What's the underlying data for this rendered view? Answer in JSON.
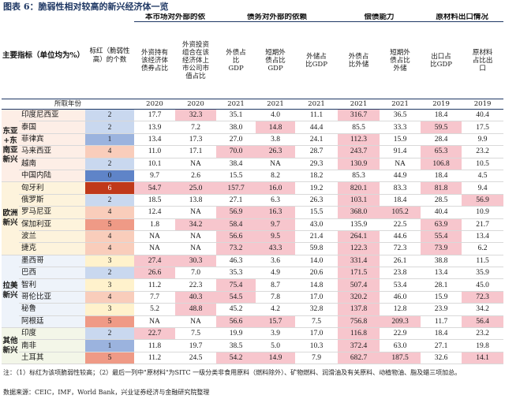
{
  "title": "图表 6：脆弱性相对较高的新兴经济体一览",
  "header": {
    "indicator": "主要指标（单位均为%）",
    "red_count": "标红（脆弱性高）的个数",
    "group1": "本市场对外部的依",
    "group2": "债务对外部的依赖",
    "group3": "偿债能力",
    "group4": "原材料出口情况",
    "cols": [
      "外资持有该经济体债券占比",
      "外资投资组合在该经济体上市公司市值占比",
      "外债占比GDP",
      "短期外债占比GDP",
      "外储占比GDP",
      "外债占比外储",
      "短期外债占比外储",
      "出口占比GDP",
      "原材料占比出口"
    ],
    "year_label": "所取年份",
    "years": [
      "2020",
      "2020",
      "2021",
      "2021",
      "2021",
      "2021",
      "2021",
      "2019",
      "2019"
    ]
  },
  "rows": [
    {
      "region": "东亚+东南亚新兴",
      "country": "印度尼西亚",
      "count": "2",
      "v": [
        "17.7",
        "32.3",
        "35.1",
        "4.0",
        "11.1",
        "316.7",
        "36.5",
        "18.4",
        "40.4"
      ]
    },
    {
      "region": "",
      "country": "泰国",
      "count": "2",
      "v": [
        "13.9",
        "7.2",
        "38.0",
        "14.8",
        "44.4",
        "85.5",
        "33.3",
        "59.5",
        "17.5"
      ]
    },
    {
      "region": "",
      "country": "菲律宾",
      "count": "1",
      "v": [
        "13.4",
        "17.3",
        "27.0",
        "3.8",
        "24.1",
        "112.3",
        "15.9",
        "28.4",
        "9.9"
      ]
    },
    {
      "region": "",
      "country": "马来西亚",
      "count": "4",
      "v": [
        "11.0",
        "17.1",
        "70.0",
        "26.3",
        "28.7",
        "243.7",
        "91.4",
        "65.3",
        "23.2"
      ]
    },
    {
      "region": "",
      "country": "越南",
      "count": "2",
      "v": [
        "10.1",
        "NA",
        "38.4",
        "NA",
        "29.3",
        "130.9",
        "NA",
        "106.8",
        "10.5"
      ]
    },
    {
      "region": "",
      "country": "中国内陆",
      "count": "0",
      "v": [
        "9.7",
        "2.6",
        "15.5",
        "8.2",
        "18.2",
        "85.3",
        "44.9",
        "18.4",
        "4.5"
      ]
    },
    {
      "region": "欧洲新兴",
      "country": "匈牙利",
      "count": "6",
      "v": [
        "54.7",
        "25.0",
        "157.7",
        "16.0",
        "19.2",
        "820.1",
        "83.3",
        "81.8",
        "9.4"
      ]
    },
    {
      "region": "",
      "country": "俄罗斯",
      "count": "2",
      "v": [
        "18.5",
        "13.8",
        "27.1",
        "6.3",
        "26.3",
        "103.1",
        "18.4",
        "28.5",
        "56.9"
      ]
    },
    {
      "region": "",
      "country": "罗马尼亚",
      "count": "4",
      "v": [
        "12.4",
        "NA",
        "56.9",
        "16.3",
        "15.5",
        "368.0",
        "105.2",
        "40.4",
        "10.9"
      ]
    },
    {
      "region": "",
      "country": "保加利亚",
      "count": "5",
      "v": [
        "1.8",
        "34.2",
        "58.4",
        "9.7",
        "43.0",
        "135.9",
        "22.5",
        "63.9",
        "21.7"
      ]
    },
    {
      "region": "",
      "country": "波兰",
      "count": "4",
      "v": [
        "NA",
        "NA",
        "56.6",
        "9.5",
        "21.4",
        "264.1",
        "44.6",
        "55.4",
        "13.4"
      ]
    },
    {
      "region": "",
      "country": "捷克",
      "count": "4",
      "v": [
        "NA",
        "NA",
        "73.2",
        "43.3",
        "59.8",
        "122.3",
        "72.3",
        "73.9",
        "6.2"
      ]
    },
    {
      "region": "拉美新兴",
      "country": "墨西哥",
      "count": "3",
      "v": [
        "27.4",
        "30.3",
        "46.3",
        "3.6",
        "14.0",
        "331.4",
        "26.1",
        "38.8",
        "11.5"
      ]
    },
    {
      "region": "",
      "country": "巴西",
      "count": "2",
      "v": [
        "26.6",
        "7.0",
        "35.3",
        "4.9",
        "20.6",
        "171.5",
        "23.8",
        "13.4",
        "35.9"
      ]
    },
    {
      "region": "",
      "country": "智利",
      "count": "3",
      "v": [
        "11.2",
        "22.3",
        "75.4",
        "8.7",
        "14.8",
        "507.4",
        "53.4",
        "28.1",
        "45.0"
      ]
    },
    {
      "region": "",
      "country": "哥伦比亚",
      "count": "4",
      "v": [
        "7.7",
        "40.3",
        "54.5",
        "7.8",
        "17.0",
        "320.2",
        "46.0",
        "15.9",
        "72.3"
      ]
    },
    {
      "region": "",
      "country": "秘鲁",
      "count": "3",
      "v": [
        "5.2",
        "48.8",
        "45.2",
        "4.2",
        "32.8",
        "137.8",
        "12.8",
        "23.9",
        "34.2"
      ]
    },
    {
      "region": "",
      "country": "阿根廷",
      "count": "5",
      "v": [
        "NA",
        "NA",
        "56.6",
        "15.7",
        "7.5",
        "756.8",
        "209.3",
        "11.7",
        "56.4"
      ]
    },
    {
      "region": "其他新兴",
      "country": "印度",
      "count": "2",
      "v": [
        "22.7",
        "7.5",
        "19.9",
        "3.9",
        "17.0",
        "116.8",
        "22.9",
        "18.4",
        "23.2"
      ]
    },
    {
      "region": "",
      "country": "南非",
      "count": "1",
      "v": [
        "11.8",
        "19.7",
        "38.5",
        "5.0",
        "10.3",
        "372.4",
        "63.0",
        "27.1",
        "19.8"
      ]
    },
    {
      "region": "",
      "country": "土耳其",
      "count": "5",
      "v": [
        "11.2",
        "24.5",
        "54.2",
        "14.9",
        "7.9",
        "682.7",
        "187.5",
        "32.6",
        "14.1"
      ]
    }
  ],
  "note": "注：（1）标红为该项脆弱性较高；（2）最后一列中\"原材料\"为SITC 一级分类非食用原料（燃料除外）、矿物燃料、润滑油及有关原料、动植物油、脂及蜡三项加总。",
  "source": "数据来源：CEIC，IMF，World Bank，兴业证券经济与金融研究院整理"
}
